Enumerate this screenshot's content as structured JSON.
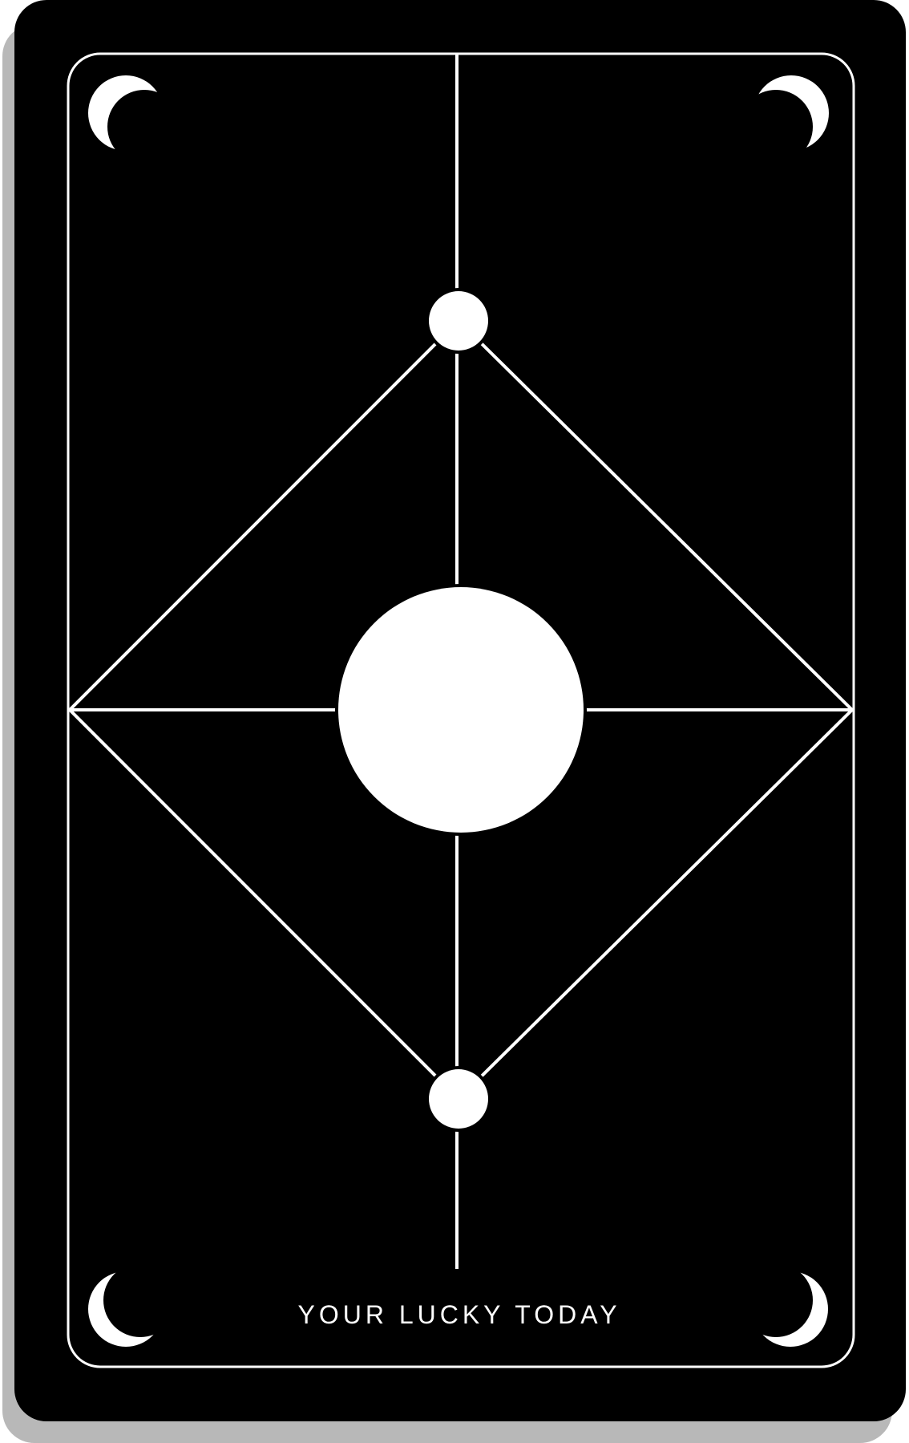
{
  "card": {
    "caption": "YOUR LUCKY TODAY",
    "icons": [
      "crescent-moon-icon",
      "crescent-moon-icon",
      "crescent-moon-icon",
      "crescent-moon-icon"
    ]
  },
  "colors": {
    "card": "#000000",
    "line": "#ffffff",
    "shadow": "#b8b8b8",
    "background": "#ffffff"
  }
}
